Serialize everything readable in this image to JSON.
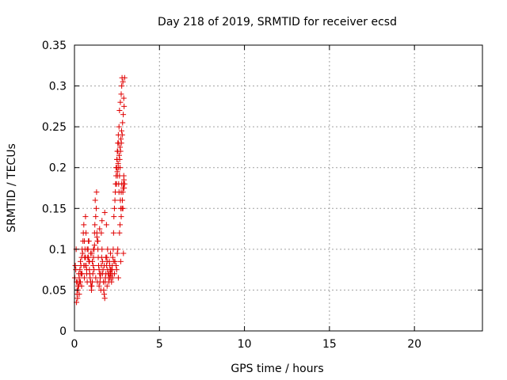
{
  "chart_data": {
    "type": "scatter",
    "title": "Day 218 of 2019, SRMTID for receiver ecsd",
    "xlabel": "GPS time / hours",
    "ylabel": "SRMTID / TECUs",
    "xlim": [
      0,
      24
    ],
    "ylim": [
      0,
      0.35
    ],
    "xticks": [
      0,
      5,
      10,
      15,
      20
    ],
    "xtick_labels": [
      "0",
      "5",
      "10",
      "15",
      "20"
    ],
    "yticks": [
      0,
      0.05,
      0.1,
      0.15,
      0.2,
      0.25,
      0.3,
      0.35
    ],
    "ytick_labels": [
      "0",
      "0.05",
      "0.1",
      "0.15",
      "0.2",
      "0.25",
      "0.3",
      "0.35"
    ],
    "grid": true,
    "marker": "+",
    "color": "#e00000",
    "series": [
      {
        "x": [
          0.02,
          0.05,
          0.08,
          0.1,
          0.12,
          0.15,
          0.18,
          0.2,
          0.22,
          0.25,
          0.28,
          0.3,
          0.32,
          0.35,
          0.38,
          0.4,
          0.42,
          0.45,
          0.48,
          0.5,
          0.52,
          0.55,
          0.58,
          0.6,
          0.62,
          0.65,
          0.68,
          0.7,
          0.72,
          0.75,
          0.78,
          0.8,
          0.82,
          0.85,
          0.88,
          0.9,
          0.92,
          0.95,
          0.98,
          1.0,
          1.02,
          1.05,
          1.08,
          1.1,
          1.12,
          1.15,
          1.18,
          1.2,
          1.22,
          1.25,
          1.28,
          1.3,
          1.32,
          1.35,
          1.38,
          1.4,
          1.42,
          1.45,
          1.48,
          1.5,
          1.52,
          1.55,
          1.58,
          1.6,
          1.62,
          1.65,
          1.68,
          1.7,
          1.72,
          1.75,
          1.78,
          1.8,
          1.82,
          1.85,
          1.88,
          1.9,
          1.92,
          1.95,
          1.98,
          2.0,
          2.02,
          2.05,
          2.08,
          2.1,
          2.12,
          2.15,
          2.18,
          2.2,
          2.22,
          2.25,
          2.28,
          2.3,
          2.32,
          2.35,
          2.38,
          2.4,
          2.42,
          2.45,
          2.48,
          2.5,
          2.52,
          2.55,
          2.58,
          2.6,
          2.62,
          2.65,
          2.68,
          2.7,
          2.72,
          2.75,
          2.78,
          2.8,
          2.82,
          2.85,
          2.88,
          2.9,
          2.92,
          2.95,
          0.15,
          0.25,
          0.35,
          0.45,
          0.55,
          0.65,
          0.75,
          0.85,
          0.95,
          1.05,
          1.15,
          1.25,
          1.35,
          1.45,
          1.55,
          1.65,
          1.75,
          1.85,
          1.95,
          2.05,
          2.15,
          2.25,
          2.35,
          2.45,
          2.55,
          2.65,
          2.75,
          2.85,
          0.12,
          0.28,
          0.42,
          0.58,
          0.72,
          0.88,
          1.02,
          1.18,
          1.32,
          1.48,
          1.62,
          1.78,
          1.92,
          2.08,
          2.22,
          2.38,
          2.52,
          2.68,
          2.82,
          0.18,
          0.38,
          0.62,
          0.82,
          1.12,
          1.38,
          1.58,
          1.88,
          2.12,
          2.32,
          2.48,
          2.58,
          2.72,
          2.88,
          2.45,
          2.5,
          2.55,
          2.6,
          2.62,
          2.65,
          2.7,
          2.75,
          2.78,
          2.8,
          2.85,
          2.9,
          2.52,
          2.57,
          2.63,
          2.68,
          2.73,
          2.77,
          2.83,
          2.87,
          2.92,
          2.95,
          2.47,
          2.53,
          2.58,
          2.66,
          2.71,
          2.76,
          2.81,
          2.86,
          2.91
        ],
        "y": [
          0.065,
          0.08,
          0.075,
          0.1,
          0.06,
          0.045,
          0.04,
          0.05,
          0.055,
          0.07,
          0.065,
          0.06,
          0.075,
          0.085,
          0.08,
          0.07,
          0.09,
          0.1,
          0.095,
          0.11,
          0.12,
          0.13,
          0.11,
          0.09,
          0.1,
          0.14,
          0.12,
          0.08,
          0.07,
          0.06,
          0.09,
          0.1,
          0.11,
          0.085,
          0.075,
          0.07,
          0.065,
          0.06,
          0.055,
          0.05,
          0.055,
          0.06,
          0.07,
          0.08,
          0.09,
          0.1,
          0.12,
          0.13,
          0.16,
          0.14,
          0.15,
          0.17,
          0.12,
          0.11,
          0.1,
          0.09,
          0.08,
          0.075,
          0.07,
          0.06,
          0.065,
          0.07,
          0.08,
          0.09,
          0.1,
          0.085,
          0.075,
          0.06,
          0.05,
          0.045,
          0.04,
          0.06,
          0.065,
          0.07,
          0.08,
          0.09,
          0.085,
          0.075,
          0.07,
          0.065,
          0.06,
          0.07,
          0.08,
          0.075,
          0.07,
          0.065,
          0.06,
          0.07,
          0.08,
          0.09,
          0.1,
          0.12,
          0.14,
          0.15,
          0.16,
          0.17,
          0.18,
          0.19,
          0.2,
          0.21,
          0.22,
          0.23,
          0.24,
          0.18,
          0.17,
          0.19,
          0.2,
          0.16,
          0.15,
          0.17,
          0.18,
          0.15,
          0.16,
          0.17,
          0.18,
          0.19,
          0.175,
          0.18,
          0.05,
          0.055,
          0.06,
          0.07,
          0.08,
          0.09,
          0.1,
          0.11,
          0.095,
          0.085,
          0.075,
          0.065,
          0.06,
          0.055,
          0.05,
          0.07,
          0.08,
          0.09,
          0.1,
          0.085,
          0.075,
          0.065,
          0.07,
          0.08,
          0.1,
          0.12,
          0.14,
          0.15,
          0.035,
          0.045,
          0.055,
          0.065,
          0.075,
          0.085,
          0.095,
          0.105,
          0.115,
          0.125,
          0.135,
          0.145,
          0.055,
          0.065,
          0.075,
          0.085,
          0.095,
          0.13,
          0.16,
          0.06,
          0.07,
          0.08,
          0.09,
          0.1,
          0.11,
          0.12,
          0.13,
          0.095,
          0.085,
          0.075,
          0.065,
          0.085,
          0.095,
          0.2,
          0.21,
          0.22,
          0.23,
          0.25,
          0.27,
          0.28,
          0.29,
          0.3,
          0.31,
          0.305,
          0.285,
          0.195,
          0.205,
          0.215,
          0.225,
          0.235,
          0.245,
          0.255,
          0.265,
          0.275,
          0.31,
          0.18,
          0.19,
          0.2,
          0.21,
          0.22,
          0.23,
          0.24,
          0.175,
          0.185
        ]
      }
    ]
  }
}
